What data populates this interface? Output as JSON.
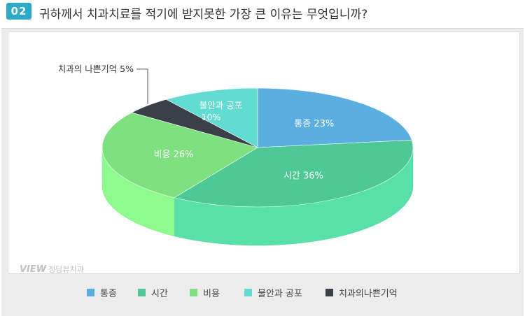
{
  "header": {
    "number": "02",
    "title": "귀하께서 치과치료를 적기에 받지못한 가장 큰 이유는 무엇입니까?"
  },
  "watermark": {
    "brand": "VIEW",
    "text": "정담뷰치과"
  },
  "chart_data": {
    "type": "pie",
    "title": "",
    "slices": [
      {
        "label": "통증",
        "value": 23,
        "data_label": "통증 23%",
        "color": "#5aaee0"
      },
      {
        "label": "시간",
        "value": 36,
        "data_label": "시간 36%",
        "color": "#4ec895"
      },
      {
        "label": "비용",
        "value": 26,
        "data_label": "비용 26%",
        "color": "#7ee07f"
      },
      {
        "label": "치과의 나쁜기억",
        "value": 5,
        "data_label": "치과의 나쁜기억 5%",
        "color": "#3a4048"
      },
      {
        "label": "불안과 공포",
        "value": 10,
        "data_label": "불안과 공포 10%",
        "color": "#62dcd2"
      }
    ],
    "legend": {
      "position": "bottom",
      "items": [
        {
          "label": "통증",
          "color": "#5aaee0"
        },
        {
          "label": "시간",
          "color": "#4ec895"
        },
        {
          "label": "비용",
          "color": "#7ee07f"
        },
        {
          "label": "불안과 공포",
          "color": "#62dcd2"
        },
        {
          "label": "치과의나쁜기억",
          "color": "#3a4048"
        }
      ]
    }
  }
}
